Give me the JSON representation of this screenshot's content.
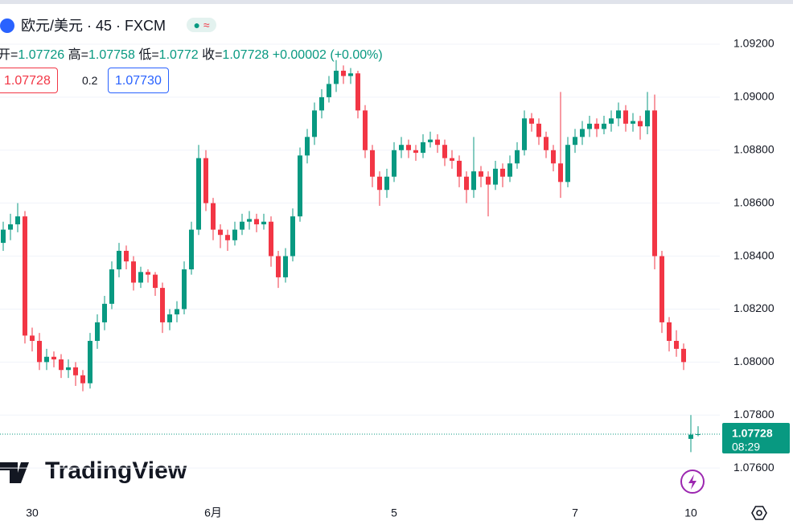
{
  "chart_data": {
    "type": "candlestick",
    "title": "欧元/美元 · 45 · FXCM",
    "ohlc_labels": [
      "开=",
      "高=",
      "低=",
      "收="
    ],
    "change": "+0.00002",
    "change_percent": "(+0.00%)",
    "bid": "1.07728",
    "spread": "0.2",
    "ask": "1.07730",
    "countdown": "08:29",
    "watermark": "TradingView",
    "up_color": "#089981",
    "down_color": "#f23645",
    "grid": true,
    "ylim": [
      1.07485,
      1.09367
    ],
    "yticks": [
      {
        "value": 1.092,
        "label": "1.09200"
      },
      {
        "value": 1.09,
        "label": "1.09000"
      },
      {
        "value": 1.088,
        "label": "1.08800"
      },
      {
        "value": 1.086,
        "label": "1.08600"
      },
      {
        "value": 1.084,
        "label": "1.08400"
      },
      {
        "value": 1.082,
        "label": "1.08200"
      },
      {
        "value": 1.08,
        "label": "1.08000"
      },
      {
        "value": 1.078,
        "label": "1.07800"
      },
      {
        "value": 1.076,
        "label": "1.07600"
      }
    ],
    "categories": [
      null,
      null,
      null,
      null,
      "30",
      null,
      null,
      null,
      null,
      null,
      null,
      null,
      null,
      null,
      null,
      null,
      null,
      null,
      null,
      null,
      null,
      null,
      null,
      null,
      null,
      null,
      null,
      null,
      null,
      "6月",
      null,
      null,
      null,
      null,
      null,
      null,
      null,
      null,
      null,
      null,
      null,
      null,
      null,
      null,
      null,
      null,
      null,
      null,
      null,
      null,
      null,
      null,
      null,
      null,
      "5",
      null,
      null,
      null,
      null,
      null,
      null,
      null,
      null,
      null,
      null,
      null,
      null,
      null,
      null,
      null,
      null,
      null,
      null,
      null,
      null,
      null,
      null,
      null,
      null,
      "7",
      null,
      null,
      null,
      null,
      null,
      null,
      null,
      null,
      null,
      null,
      null,
      null,
      null,
      null,
      null,
      "10",
      null
    ],
    "ohlc": [
      [
        1.0845,
        1.0853,
        1.0842,
        1.085
      ],
      [
        1.085,
        1.0856,
        1.0846,
        1.0852
      ],
      [
        1.0852,
        1.086,
        1.0849,
        1.0855
      ],
      [
        1.0855,
        1.0857,
        1.0807,
        1.081
      ],
      [
        1.081,
        1.0813,
        1.0804,
        1.0808
      ],
      [
        1.0808,
        1.0811,
        1.0797,
        1.08
      ],
      [
        1.08,
        1.0805,
        1.0797,
        1.0802
      ],
      [
        1.0802,
        1.0804,
        1.0798,
        1.0801
      ],
      [
        1.0801,
        1.0803,
        1.0794,
        1.0797
      ],
      [
        1.0797,
        1.0801,
        1.0794,
        1.0798
      ],
      [
        1.0798,
        1.08,
        1.0791,
        1.0795
      ],
      [
        1.0795,
        1.0797,
        1.0789,
        1.0792
      ],
      [
        1.0792,
        1.0811,
        1.079,
        1.0808
      ],
      [
        1.0808,
        1.0818,
        1.0805,
        1.0815
      ],
      [
        1.0815,
        1.0825,
        1.0812,
        1.0822
      ],
      [
        1.0822,
        1.0838,
        1.082,
        1.0835
      ],
      [
        1.0835,
        1.0845,
        1.0832,
        1.0842
      ],
      [
        1.0842,
        1.0844,
        1.0835,
        1.0838
      ],
      [
        1.0838,
        1.084,
        1.0827,
        1.083
      ],
      [
        1.083,
        1.0836,
        1.0828,
        1.0834
      ],
      [
        1.0834,
        1.0835,
        1.083,
        1.0833
      ],
      [
        1.0833,
        1.0834,
        1.0825,
        1.0828
      ],
      [
        1.0828,
        1.083,
        1.0811,
        1.0815
      ],
      [
        1.0815,
        1.082,
        1.0812,
        1.0818
      ],
      [
        1.0818,
        1.0823,
        1.0815,
        1.082
      ],
      [
        1.082,
        1.0838,
        1.0818,
        1.0835
      ],
      [
        1.0835,
        1.0853,
        1.0833,
        1.085
      ],
      [
        1.085,
        1.0882,
        1.0848,
        1.0877
      ],
      [
        1.0877,
        1.088,
        1.0857,
        1.086
      ],
      [
        1.086,
        1.0862,
        1.0846,
        1.085
      ],
      [
        1.085,
        1.0852,
        1.0843,
        1.0848
      ],
      [
        1.0848,
        1.085,
        1.0842,
        1.0846
      ],
      [
        1.0846,
        1.0853,
        1.0844,
        1.085
      ],
      [
        1.085,
        1.0856,
        1.0848,
        1.0853
      ],
      [
        1.0853,
        1.0857,
        1.085,
        1.0854
      ],
      [
        1.0854,
        1.0856,
        1.0849,
        1.0852
      ],
      [
        1.0852,
        1.0856,
        1.085,
        1.0853
      ],
      [
        1.0853,
        1.0855,
        1.0836,
        1.084
      ],
      [
        1.084,
        1.0842,
        1.0828,
        1.0832
      ],
      [
        1.0832,
        1.0843,
        1.083,
        1.084
      ],
      [
        1.084,
        1.0858,
        1.0838,
        1.0855
      ],
      [
        1.0855,
        1.0881,
        1.0853,
        1.0878
      ],
      [
        1.0878,
        1.0888,
        1.0875,
        1.0885
      ],
      [
        1.0885,
        1.0898,
        1.0882,
        1.0895
      ],
      [
        1.0895,
        1.0903,
        1.0892,
        1.09
      ],
      [
        1.09,
        1.0908,
        1.0898,
        1.0905
      ],
      [
        1.0905,
        1.0914,
        1.0902,
        1.091
      ],
      [
        1.091,
        1.0912,
        1.0905,
        1.0908
      ],
      [
        1.0908,
        1.0911,
        1.0905,
        1.0909
      ],
      [
        1.0909,
        1.091,
        1.0892,
        1.0895
      ],
      [
        1.0895,
        1.0897,
        1.0877,
        1.088
      ],
      [
        1.088,
        1.0882,
        1.0866,
        1.087
      ],
      [
        1.087,
        1.0872,
        1.0859,
        1.0865
      ],
      [
        1.0865,
        1.0873,
        1.0862,
        1.087
      ],
      [
        1.087,
        1.0883,
        1.0868,
        1.088
      ],
      [
        1.088,
        1.0885,
        1.0877,
        1.0882
      ],
      [
        1.0882,
        1.0884,
        1.0877,
        1.088
      ],
      [
        1.088,
        1.0882,
        1.0876,
        1.0879
      ],
      [
        1.0879,
        1.0886,
        1.0877,
        1.0883
      ],
      [
        1.0883,
        1.0887,
        1.0881,
        1.0884
      ],
      [
        1.0884,
        1.0886,
        1.0879,
        1.0882
      ],
      [
        1.0882,
        1.0884,
        1.0874,
        1.0877
      ],
      [
        1.0877,
        1.088,
        1.0873,
        1.0876
      ],
      [
        1.0876,
        1.0878,
        1.0866,
        1.087
      ],
      [
        1.087,
        1.0872,
        1.086,
        1.0865
      ],
      [
        1.0865,
        1.0885,
        1.0862,
        1.0872
      ],
      [
        1.0872,
        1.0874,
        1.0866,
        1.087
      ],
      [
        1.087,
        1.0872,
        1.0855,
        1.0867
      ],
      [
        1.0867,
        1.0876,
        1.0865,
        1.0873
      ],
      [
        1.0873,
        1.0875,
        1.0866,
        1.087
      ],
      [
        1.087,
        1.0878,
        1.0868,
        1.0875
      ],
      [
        1.0875,
        1.0883,
        1.0873,
        1.088
      ],
      [
        1.088,
        1.0895,
        1.0878,
        1.0892
      ],
      [
        1.0892,
        1.0894,
        1.0887,
        1.089
      ],
      [
        1.089,
        1.0892,
        1.0882,
        1.0885
      ],
      [
        1.0885,
        1.0887,
        1.0877,
        1.088
      ],
      [
        1.088,
        1.0882,
        1.0872,
        1.0875
      ],
      [
        1.0875,
        1.0902,
        1.0862,
        1.0868
      ],
      [
        1.0868,
        1.0885,
        1.0866,
        1.0882
      ],
      [
        1.0882,
        1.0888,
        1.0879,
        1.0885
      ],
      [
        1.0885,
        1.0891,
        1.0882,
        1.0888
      ],
      [
        1.0888,
        1.0893,
        1.0885,
        1.089
      ],
      [
        1.089,
        1.0892,
        1.0885,
        1.0888
      ],
      [
        1.0888,
        1.0893,
        1.0886,
        1.089
      ],
      [
        1.089,
        1.0895,
        1.0887,
        1.0892
      ],
      [
        1.0892,
        1.0898,
        1.0889,
        1.0895
      ],
      [
        1.0895,
        1.0897,
        1.0887,
        1.089
      ],
      [
        1.089,
        1.0894,
        1.0887,
        1.0891
      ],
      [
        1.0891,
        1.0893,
        1.0884,
        1.0889
      ],
      [
        1.0889,
        1.0902,
        1.0886,
        1.0895
      ],
      [
        1.0895,
        1.0901,
        1.0835,
        1.084
      ],
      [
        1.084,
        1.0842,
        1.0811,
        1.0815
      ],
      [
        1.0815,
        1.0817,
        1.0804,
        1.0808
      ],
      [
        1.0808,
        1.0812,
        1.0802,
        1.0805
      ],
      [
        1.0805,
        1.0807,
        1.0797,
        1.08
      ],
      [
        1.0771,
        1.078,
        1.0766,
        1.07726
      ],
      [
        1.07726,
        1.07758,
        1.0772,
        1.07728
      ]
    ]
  }
}
